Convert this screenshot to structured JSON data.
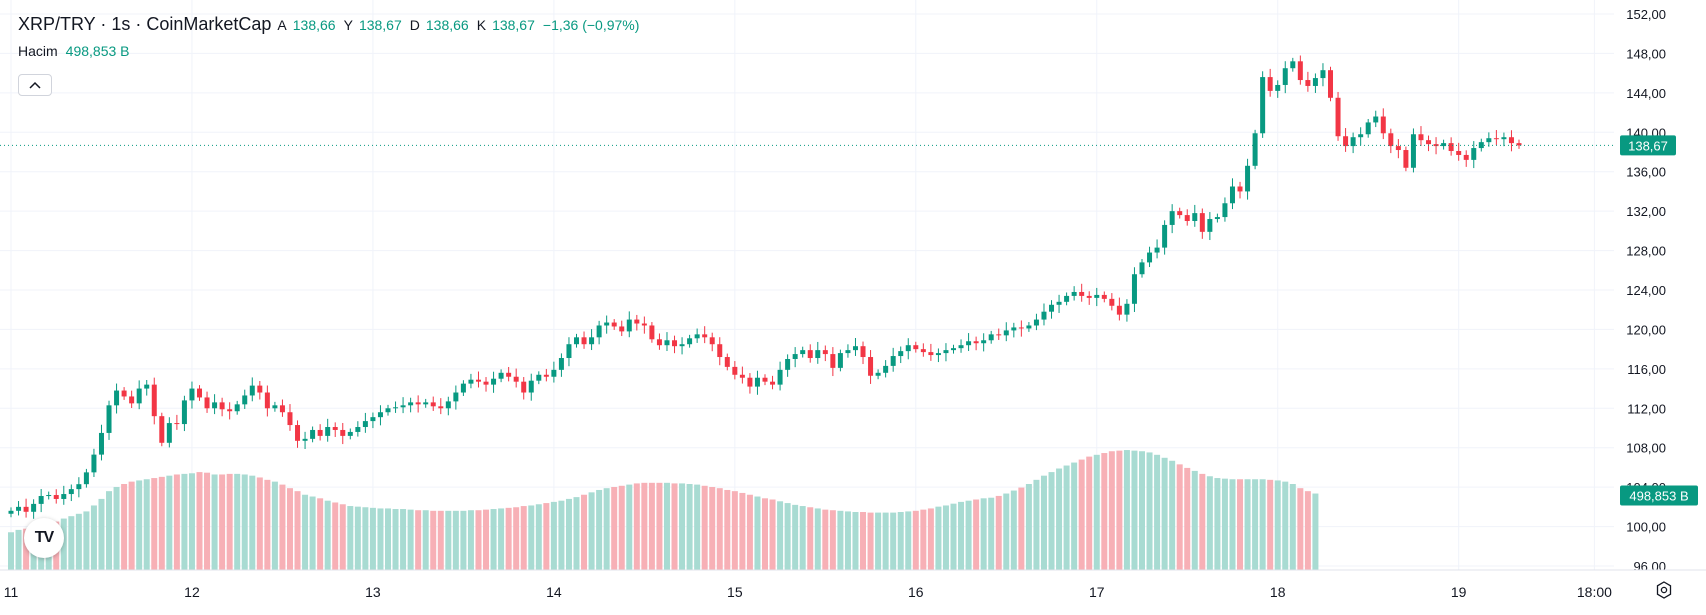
{
  "legend": {
    "title": "XRP/TRY · 1s · CoinMarketCap",
    "open_label": "A",
    "open_value": "138,66",
    "high_label": "Y",
    "high_value": "138,67",
    "low_label": "D",
    "low_value": "138,66",
    "close_label": "K",
    "close_value": "138,67",
    "change": "−1,36 (−0,97%)",
    "volume_label": "Hacim",
    "volume_value": "498,853 B"
  },
  "collapse_icon": "chevron-up-icon",
  "logo_text": "TV",
  "settings_icon": "settings-icon",
  "price_badge": "138,67",
  "volume_badge": "498,853 B",
  "colors": {
    "up": "#089981",
    "down": "#f23645",
    "vol_up": "#a8dbd2",
    "vol_down": "#f7b0b6"
  },
  "chart_data": {
    "type": "candlestick",
    "title": "XRP/TRY · 1s · CoinMarketCap",
    "interval": "1 hour",
    "ylim": [
      95,
      153
    ],
    "y_ticks": [
      "152,00",
      "148,00",
      "144,00",
      "140,00",
      "136,00",
      "132,00",
      "128,00",
      "124,00",
      "120,00",
      "116,00",
      "112,00",
      "108,00",
      "104,00",
      "100,00",
      "96,00"
    ],
    "x_ticks": [
      {
        "label": "11",
        "bar": 0
      },
      {
        "label": "12",
        "bar": 24
      },
      {
        "label": "13",
        "bar": 48
      },
      {
        "label": "14",
        "bar": 72
      },
      {
        "label": "15",
        "bar": 96
      },
      {
        "label": "16",
        "bar": 120
      },
      {
        "label": "17",
        "bar": 144
      },
      {
        "label": "18",
        "bar": 168
      },
      {
        "label": "19",
        "bar": 192
      },
      {
        "label": "18:00",
        "bar": 210
      }
    ],
    "last_price": 138.67,
    "grid": true,
    "closes": [
      101.6,
      102.0,
      101.5,
      102.3,
      103.1,
      103.2,
      102.8,
      103.3,
      103.8,
      104.3,
      105.5,
      107.3,
      109.5,
      112.3,
      113.8,
      113.2,
      112.5,
      114.0,
      114.4,
      111.2,
      108.5,
      110.5,
      110.4,
      112.8,
      114.0,
      113.1,
      112.0,
      112.6,
      111.9,
      111.7,
      112.4,
      113.3,
      114.3,
      113.6,
      112.0,
      112.3,
      111.6,
      110.3,
      108.7,
      108.9,
      109.8,
      109.2,
      110.1,
      109.8,
      109.2,
      109.6,
      110.1,
      110.7,
      111.1,
      111.6,
      112.0,
      112.1,
      112.3,
      112.6,
      112.4,
      112.6,
      112.2,
      112.0,
      112.7,
      113.6,
      114.5,
      114.9,
      114.7,
      114.4,
      115.0,
      115.6,
      115.2,
      114.7,
      113.6,
      114.8,
      115.4,
      115.2,
      115.9,
      117.1,
      118.5,
      119.2,
      118.5,
      119.2,
      120.4,
      120.7,
      120.3,
      119.8,
      121.0,
      120.6,
      120.4,
      119.0,
      118.4,
      118.9,
      118.3,
      118.5,
      119.1,
      119.5,
      119.2,
      118.5,
      117.2,
      116.2,
      115.4,
      115.1,
      114.2,
      115.1,
      114.7,
      114.4,
      115.9,
      117.0,
      117.5,
      117.9,
      117.1,
      117.9,
      117.5,
      116.1,
      117.6,
      117.9,
      118.3,
      117.2,
      115.3,
      115.6,
      116.3,
      117.3,
      117.8,
      118.4,
      118.0,
      117.7,
      117.4,
      117.6,
      117.9,
      118.1,
      118.4,
      118.8,
      118.6,
      118.9,
      119.5,
      119.4,
      119.9,
      120.2,
      120.1,
      120.4,
      121.0,
      121.8,
      122.5,
      122.8,
      123.4,
      123.8,
      123.4,
      123.2,
      123.5,
      123.1,
      122.4,
      121.5,
      122.6,
      125.6,
      126.8,
      127.8,
      128.3,
      130.6,
      132.0,
      131.6,
      131.0,
      131.8,
      129.9,
      131.2,
      131.4,
      132.8,
      134.5,
      134.0,
      136.6,
      139.9,
      145.6,
      144.2,
      144.8,
      146.5,
      147.2,
      145.3,
      144.7,
      145.5,
      146.3,
      143.5,
      139.6,
      138.6,
      139.5,
      139.8,
      141.0,
      141.6,
      139.9,
      138.6,
      138.2,
      136.4,
      139.8,
      139.2,
      138.8,
      138.6,
      138.9,
      138.1,
      137.7,
      137.2,
      138.4,
      139.0,
      139.4,
      139.3,
      139.5,
      138.9,
      138.67
    ],
    "volumes": [
      94.5,
      94.9,
      95.1,
      95.5,
      95.7,
      96.0,
      96.3,
      96.8,
      97.2,
      97.6,
      98.0,
      99.0,
      100.1,
      101.4,
      102.1,
      102.6,
      103.0,
      103.2,
      103.4,
      103.6,
      103.8,
      104.0,
      104.2,
      104.3,
      104.4,
      104.6,
      104.5,
      104.2,
      104.2,
      104.3,
      104.3,
      104.2,
      104.0,
      103.7,
      103.3,
      103.0,
      102.5,
      101.9,
      101.4,
      100.8,
      100.5,
      100.2,
      99.8,
      99.5,
      99.2,
      98.9,
      98.8,
      98.7,
      98.6,
      98.5,
      98.5,
      98.4,
      98.4,
      98.3,
      98.2,
      98.2,
      98.1,
      98.1,
      98.1,
      98.1,
      98.1,
      98.2,
      98.2,
      98.3,
      98.4,
      98.5,
      98.6,
      98.7,
      98.9,
      99.0,
      99.2,
      99.4,
      99.6,
      99.8,
      100.1,
      100.4,
      100.8,
      101.2,
      101.6,
      101.9,
      102.1,
      102.3,
      102.5,
      102.7,
      102.8,
      102.8,
      102.8,
      102.8,
      102.7,
      102.7,
      102.6,
      102.5,
      102.3,
      102.1,
      101.9,
      101.6,
      101.4,
      101.1,
      100.8,
      100.5,
      100.2,
      100.0,
      99.7,
      99.4,
      99.1,
      98.9,
      98.7,
      98.5,
      98.3,
      98.2,
      98.1,
      98.0,
      97.9,
      97.9,
      97.8,
      97.8,
      97.8,
      97.8,
      97.9,
      98.0,
      98.1,
      98.3,
      98.5,
      98.8,
      99.0,
      99.3,
      99.6,
      99.8,
      100.0,
      100.2,
      100.3,
      100.6,
      101.0,
      101.5,
      102.0,
      102.6,
      103.3,
      104.0,
      104.6,
      105.2,
      105.7,
      106.2,
      106.7,
      107.2,
      107.5,
      107.8,
      108.1,
      108.2,
      108.3,
      108.2,
      108.1,
      107.9,
      107.5,
      107.0,
      106.5,
      105.9,
      105.3,
      104.8,
      104.3,
      103.9,
      103.6,
      103.5,
      103.4,
      103.4,
      103.4,
      103.4,
      103.4,
      103.3,
      103.2,
      103.0,
      102.6,
      101.9,
      101.4,
      101.0
    ]
  }
}
